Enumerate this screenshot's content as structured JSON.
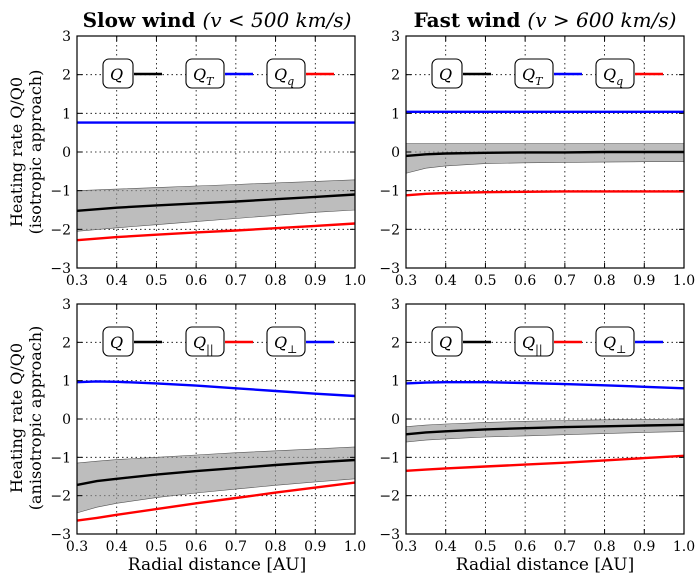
{
  "figure": {
    "columns": [
      {
        "title": "Slow wind",
        "condition": "(v < 500 km/s)"
      },
      {
        "title": "Fast wind",
        "condition": "(v > 600 km/s)"
      }
    ],
    "row_labels": [
      {
        "line1": "Heating rate Q/Q0",
        "line2": "(isotropic approach)"
      },
      {
        "line1": "Heating rate Q/Q0",
        "line2": "(anisotropic approach)"
      }
    ],
    "xlabel": "Radial distance [AU]"
  },
  "colors": {
    "Q": "#000000",
    "blue": "#0000ff",
    "red": "#ff0000",
    "band": "#999999"
  },
  "chart_data": [
    {
      "panel": "slow-isotropic",
      "type": "line",
      "xlim": [
        0.3,
        1.0
      ],
      "ylim": [
        -3,
        3
      ],
      "xticks": [
        0.3,
        0.4,
        0.5,
        0.6,
        0.7,
        0.8,
        0.9,
        1.0
      ],
      "yticks": [
        -3,
        -2,
        -1,
        0,
        1,
        2,
        3
      ],
      "x": [
        0.3,
        0.4,
        0.5,
        0.6,
        0.7,
        0.8,
        0.9,
        1.0
      ],
      "series": [
        {
          "name": "Q",
          "sub": "",
          "color": "#000000",
          "values": [
            -1.52,
            -1.44,
            -1.38,
            -1.33,
            -1.28,
            -1.22,
            -1.16,
            -1.1
          ],
          "band_upper": [
            -1.0,
            -0.96,
            -0.92,
            -0.88,
            -0.84,
            -0.8,
            -0.76,
            -0.72
          ],
          "band_lower": [
            -2.05,
            -1.96,
            -1.88,
            -1.8,
            -1.72,
            -1.64,
            -1.56,
            -1.5
          ]
        },
        {
          "name": "Q",
          "sub": "T",
          "color": "#0000ff",
          "values": [
            0.76,
            0.76,
            0.76,
            0.76,
            0.76,
            0.76,
            0.76,
            0.76
          ]
        },
        {
          "name": "Q",
          "sub": "q",
          "color": "#ff0000",
          "values": [
            -2.28,
            -2.2,
            -2.14,
            -2.08,
            -2.03,
            -1.97,
            -1.91,
            -1.85
          ]
        }
      ],
      "legend": {
        "placement": "top"
      },
      "grid": true
    },
    {
      "panel": "fast-isotropic",
      "type": "line",
      "xlim": [
        0.3,
        1.0
      ],
      "ylim": [
        -3,
        3
      ],
      "xticks": [
        0.3,
        0.4,
        0.5,
        0.6,
        0.7,
        0.8,
        0.9,
        1.0
      ],
      "yticks": [
        -3,
        -2,
        -1,
        0,
        1,
        2,
        3
      ],
      "x": [
        0.3,
        0.35,
        0.4,
        0.5,
        0.6,
        0.7,
        0.8,
        0.9,
        1.0
      ],
      "series": [
        {
          "name": "Q",
          "sub": "",
          "color": "#000000",
          "values": [
            -0.1,
            -0.06,
            -0.04,
            -0.02,
            -0.01,
            -0.01,
            0.0,
            0.0,
            0.0
          ],
          "band_upper": [
            0.22,
            0.22,
            0.22,
            0.22,
            0.22,
            0.22,
            0.22,
            0.22,
            0.22
          ],
          "band_lower": [
            -0.55,
            -0.42,
            -0.36,
            -0.3,
            -0.28,
            -0.27,
            -0.26,
            -0.25,
            -0.25
          ]
        },
        {
          "name": "Q",
          "sub": "T",
          "color": "#0000ff",
          "values": [
            1.04,
            1.04,
            1.04,
            1.04,
            1.04,
            1.04,
            1.04,
            1.04,
            1.04
          ]
        },
        {
          "name": "Q",
          "sub": "q",
          "color": "#ff0000",
          "values": [
            -1.12,
            -1.08,
            -1.06,
            -1.04,
            -1.03,
            -1.02,
            -1.02,
            -1.02,
            -1.02
          ]
        }
      ],
      "legend": {
        "placement": "top"
      },
      "grid": true
    },
    {
      "panel": "slow-anisotropic",
      "type": "line",
      "xlim": [
        0.3,
        1.0
      ],
      "ylim": [
        -3,
        3
      ],
      "xticks": [
        0.3,
        0.4,
        0.5,
        0.6,
        0.7,
        0.8,
        0.9,
        1.0
      ],
      "yticks": [
        -3,
        -2,
        -1,
        0,
        1,
        2,
        3
      ],
      "x": [
        0.3,
        0.35,
        0.4,
        0.5,
        0.6,
        0.7,
        0.8,
        0.9,
        1.0
      ],
      "series": [
        {
          "name": "Q",
          "sub": "",
          "color": "#000000",
          "values": [
            -1.72,
            -1.62,
            -1.56,
            -1.45,
            -1.36,
            -1.28,
            -1.2,
            -1.13,
            -1.07
          ],
          "band_upper": [
            -1.15,
            -1.1,
            -1.06,
            -1.0,
            -0.94,
            -0.88,
            -0.83,
            -0.78,
            -0.73
          ],
          "band_lower": [
            -2.45,
            -2.3,
            -2.2,
            -2.05,
            -1.93,
            -1.83,
            -1.73,
            -1.64,
            -1.56
          ]
        },
        {
          "name": "Q",
          "sub": "||",
          "color": "#ff0000",
          "values": [
            -2.65,
            -2.58,
            -2.5,
            -2.35,
            -2.2,
            -2.06,
            -1.92,
            -1.79,
            -1.66
          ]
        },
        {
          "name": "Q",
          "sub": "⊥",
          "color": "#0000ff",
          "values": [
            0.96,
            0.98,
            0.97,
            0.93,
            0.87,
            0.8,
            0.73,
            0.66,
            0.6
          ]
        }
      ],
      "legend": {
        "placement": "top"
      },
      "grid": true
    },
    {
      "panel": "fast-anisotropic",
      "type": "line",
      "xlim": [
        0.3,
        1.0
      ],
      "ylim": [
        -3,
        3
      ],
      "xticks": [
        0.3,
        0.4,
        0.5,
        0.6,
        0.7,
        0.8,
        0.9,
        1.0
      ],
      "yticks": [
        -3,
        -2,
        -1,
        0,
        1,
        2,
        3
      ],
      "x": [
        0.3,
        0.35,
        0.4,
        0.5,
        0.6,
        0.7,
        0.8,
        0.9,
        1.0
      ],
      "series": [
        {
          "name": "Q",
          "sub": "",
          "color": "#000000",
          "values": [
            -0.4,
            -0.35,
            -0.32,
            -0.27,
            -0.24,
            -0.21,
            -0.19,
            -0.17,
            -0.15
          ],
          "band_upper": [
            -0.2,
            -0.16,
            -0.13,
            -0.09,
            -0.06,
            -0.04,
            -0.02,
            -0.01,
            0.0
          ],
          "band_lower": [
            -0.6,
            -0.55,
            -0.52,
            -0.47,
            -0.44,
            -0.41,
            -0.38,
            -0.35,
            -0.33
          ]
        },
        {
          "name": "Q",
          "sub": "||",
          "color": "#ff0000",
          "values": [
            -1.35,
            -1.32,
            -1.29,
            -1.24,
            -1.19,
            -1.14,
            -1.08,
            -1.02,
            -0.96
          ]
        },
        {
          "name": "Q",
          "sub": "⊥",
          "color": "#0000ff",
          "values": [
            0.93,
            0.95,
            0.96,
            0.96,
            0.94,
            0.91,
            0.88,
            0.84,
            0.8
          ]
        }
      ],
      "legend": {
        "placement": "top"
      },
      "grid": true
    }
  ]
}
